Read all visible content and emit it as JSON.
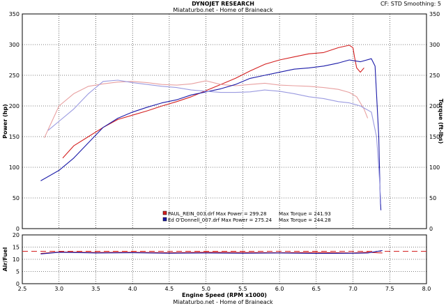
{
  "header": {
    "title": "DYNOJET RESEARCH",
    "subtitle": "Miataturbo.net - Home of Braineack",
    "settings": "CF: STD  Smoothing: 5"
  },
  "footer": {
    "text": "Miataturbo.net - Home of Braineack"
  },
  "colors": {
    "paul": "#d42020",
    "paul_light": "#e8a0a0",
    "ed": "#1a1aa8",
    "ed_light": "#9a9ae0",
    "grid": "#000000",
    "afr_ref": "#d42020"
  },
  "chart_data": [
    {
      "type": "line",
      "title": "",
      "xlabel": "Engine Speed (RPM x1000)",
      "ylabel": "Power (hp)",
      "y2label": "Torque (ft-lbs)",
      "xlim": [
        2.5,
        8.0
      ],
      "ylim": [
        0,
        350
      ],
      "xticks": [
        "2.5",
        "3.0",
        "3.5",
        "4.0",
        "4.5",
        "5.0",
        "5.5",
        "6.0",
        "6.5",
        "7.0",
        "7.5",
        "8.0"
      ],
      "yticks": [
        "0",
        "50",
        "100",
        "150",
        "200",
        "250",
        "300",
        "350"
      ],
      "grid": "dotted",
      "legend": [
        {
          "text": "PAUL_REIN_003.drf Max Power = 299.28",
          "torque": "Max Torque = 241.93",
          "color": "#d42020"
        },
        {
          "text": "Ed O'Donnell_007.drf Max Power = 275.24",
          "torque": "Max Torque = 244.28",
          "color": "#1a1aa8"
        }
      ],
      "series": [
        {
          "key": "paul_power",
          "color": "#d42020",
          "x": [
            3.05,
            3.2,
            3.4,
            3.6,
            3.8,
            4.0,
            4.2,
            4.4,
            4.6,
            4.8,
            5.0,
            5.2,
            5.4,
            5.6,
            5.8,
            6.0,
            6.2,
            6.4,
            6.6,
            6.8,
            6.95,
            7.0,
            7.02,
            7.05,
            7.1,
            7.15
          ],
          "y": [
            115,
            135,
            150,
            165,
            178,
            185,
            192,
            200,
            207,
            215,
            225,
            235,
            245,
            257,
            268,
            275,
            280,
            285,
            287,
            295,
            299,
            295,
            280,
            262,
            255,
            262
          ]
        },
        {
          "key": "paul_torque",
          "color": "#e8a0a0",
          "x": [
            2.8,
            3.0,
            3.2,
            3.4,
            3.6,
            3.8,
            4.0,
            4.2,
            4.4,
            4.6,
            4.8,
            5.0,
            5.2,
            5.4,
            5.6,
            5.8,
            6.0,
            6.2,
            6.4,
            6.6,
            6.8,
            6.95,
            7.05,
            7.1,
            7.15,
            7.2
          ],
          "y": [
            148,
            200,
            220,
            232,
            236,
            239,
            240,
            238,
            235,
            234,
            236,
            241,
            235,
            233,
            235,
            237,
            234,
            233,
            232,
            230,
            227,
            222,
            215,
            205,
            195,
            180
          ]
        },
        {
          "key": "ed_power",
          "color": "#1a1aa8",
          "x": [
            2.75,
            3.0,
            3.2,
            3.4,
            3.6,
            3.8,
            4.0,
            4.2,
            4.4,
            4.6,
            4.8,
            5.0,
            5.2,
            5.4,
            5.6,
            5.8,
            6.0,
            6.2,
            6.4,
            6.6,
            6.8,
            6.95,
            7.1,
            7.25,
            7.3,
            7.32,
            7.35,
            7.37,
            7.38
          ],
          "y": [
            78,
            95,
            115,
            140,
            165,
            180,
            190,
            198,
            205,
            210,
            218,
            223,
            228,
            235,
            245,
            250,
            255,
            260,
            262,
            265,
            270,
            275,
            272,
            277,
            265,
            220,
            150,
            50,
            30
          ]
        },
        {
          "key": "ed_torque",
          "color": "#9a9ae0",
          "x": [
            2.85,
            3.0,
            3.2,
            3.4,
            3.6,
            3.8,
            4.0,
            4.2,
            4.4,
            4.6,
            4.8,
            5.0,
            5.2,
            5.4,
            5.6,
            5.8,
            6.0,
            6.2,
            6.4,
            6.6,
            6.8,
            6.95,
            7.1,
            7.25,
            7.32,
            7.35,
            7.37,
            7.38
          ],
          "y": [
            160,
            175,
            195,
            220,
            240,
            242,
            238,
            235,
            232,
            230,
            226,
            224,
            222,
            222,
            223,
            226,
            224,
            220,
            215,
            212,
            207,
            205,
            200,
            190,
            150,
            100,
            60,
            40
          ]
        }
      ]
    },
    {
      "type": "line",
      "title": "",
      "xlabel": "Engine Speed (RPM x1000)",
      "ylabel": "Air/Fuel",
      "xlim": [
        2.5,
        8.0
      ],
      "ylim": [
        0,
        20
      ],
      "yticks": [
        "0",
        "5",
        "10",
        "15",
        "20"
      ],
      "grid": "dotted",
      "reference_line": 13.3,
      "series": [
        {
          "key": "paul_afr",
          "color": "#d42020",
          "x": [
            2.75,
            3.0,
            3.5,
            4.0,
            4.5,
            5.0,
            5.5,
            6.0,
            6.5,
            7.0,
            7.2,
            7.4
          ],
          "y": [
            12.4,
            13.0,
            12.8,
            12.9,
            12.7,
            12.9,
            12.8,
            12.7,
            12.8,
            12.6,
            12.9,
            12.6
          ]
        },
        {
          "key": "ed_afr",
          "color": "#1a1aa8",
          "x": [
            2.75,
            3.0,
            3.5,
            4.0,
            4.5,
            5.0,
            5.5,
            6.0,
            6.5,
            7.0,
            7.2,
            7.4
          ],
          "y": [
            12.2,
            12.9,
            12.6,
            12.7,
            12.5,
            12.6,
            12.5,
            12.6,
            12.4,
            12.5,
            12.6,
            13.6
          ]
        }
      ]
    }
  ]
}
